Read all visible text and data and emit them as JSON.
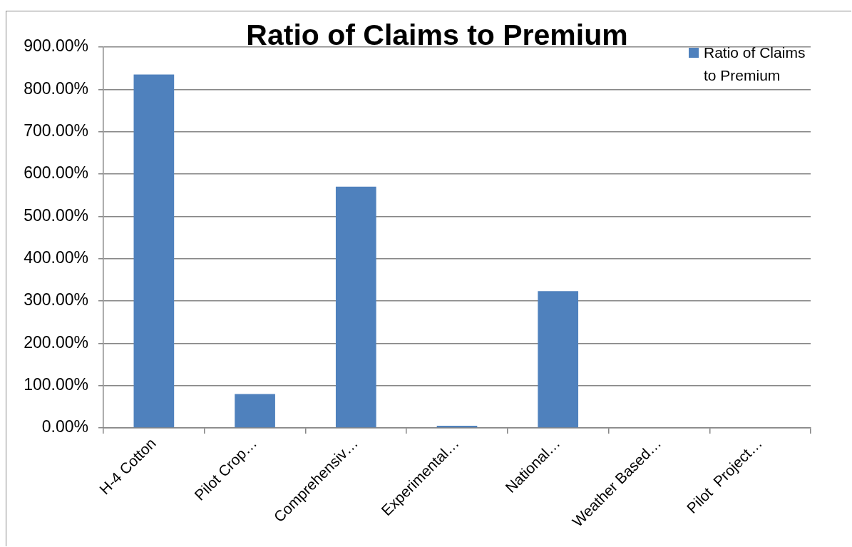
{
  "chart_data": {
    "type": "bar",
    "title": "Ratio of Claims to Premium",
    "categories": [
      "H-4 Cotton",
      "Pilot Crop…",
      "Comprehensiv…",
      "Experimental…",
      "National…",
      "Weather Based…",
      "Pilot  Project…"
    ],
    "series": [
      {
        "name": "Ratio of Claims to Premium",
        "color": "#4f81bd",
        "values": [
          835,
          80,
          570,
          5,
          323,
          0,
          0
        ]
      }
    ],
    "ylim": [
      0,
      900
    ],
    "yticks": [
      {
        "value": 0,
        "label": "0.00%"
      },
      {
        "value": 100,
        "label": "100.00%"
      },
      {
        "value": 200,
        "label": "200.00%"
      },
      {
        "value": 300,
        "label": "300.00%"
      },
      {
        "value": 400,
        "label": "400.00%"
      },
      {
        "value": 500,
        "label": "500.00%"
      },
      {
        "value": 600,
        "label": "600.00%"
      },
      {
        "value": 700,
        "label": "700.00%"
      },
      {
        "value": 800,
        "label": "800.00%"
      },
      {
        "value": 900,
        "label": "900.00%"
      }
    ],
    "grid": "y",
    "legend": "top right"
  }
}
